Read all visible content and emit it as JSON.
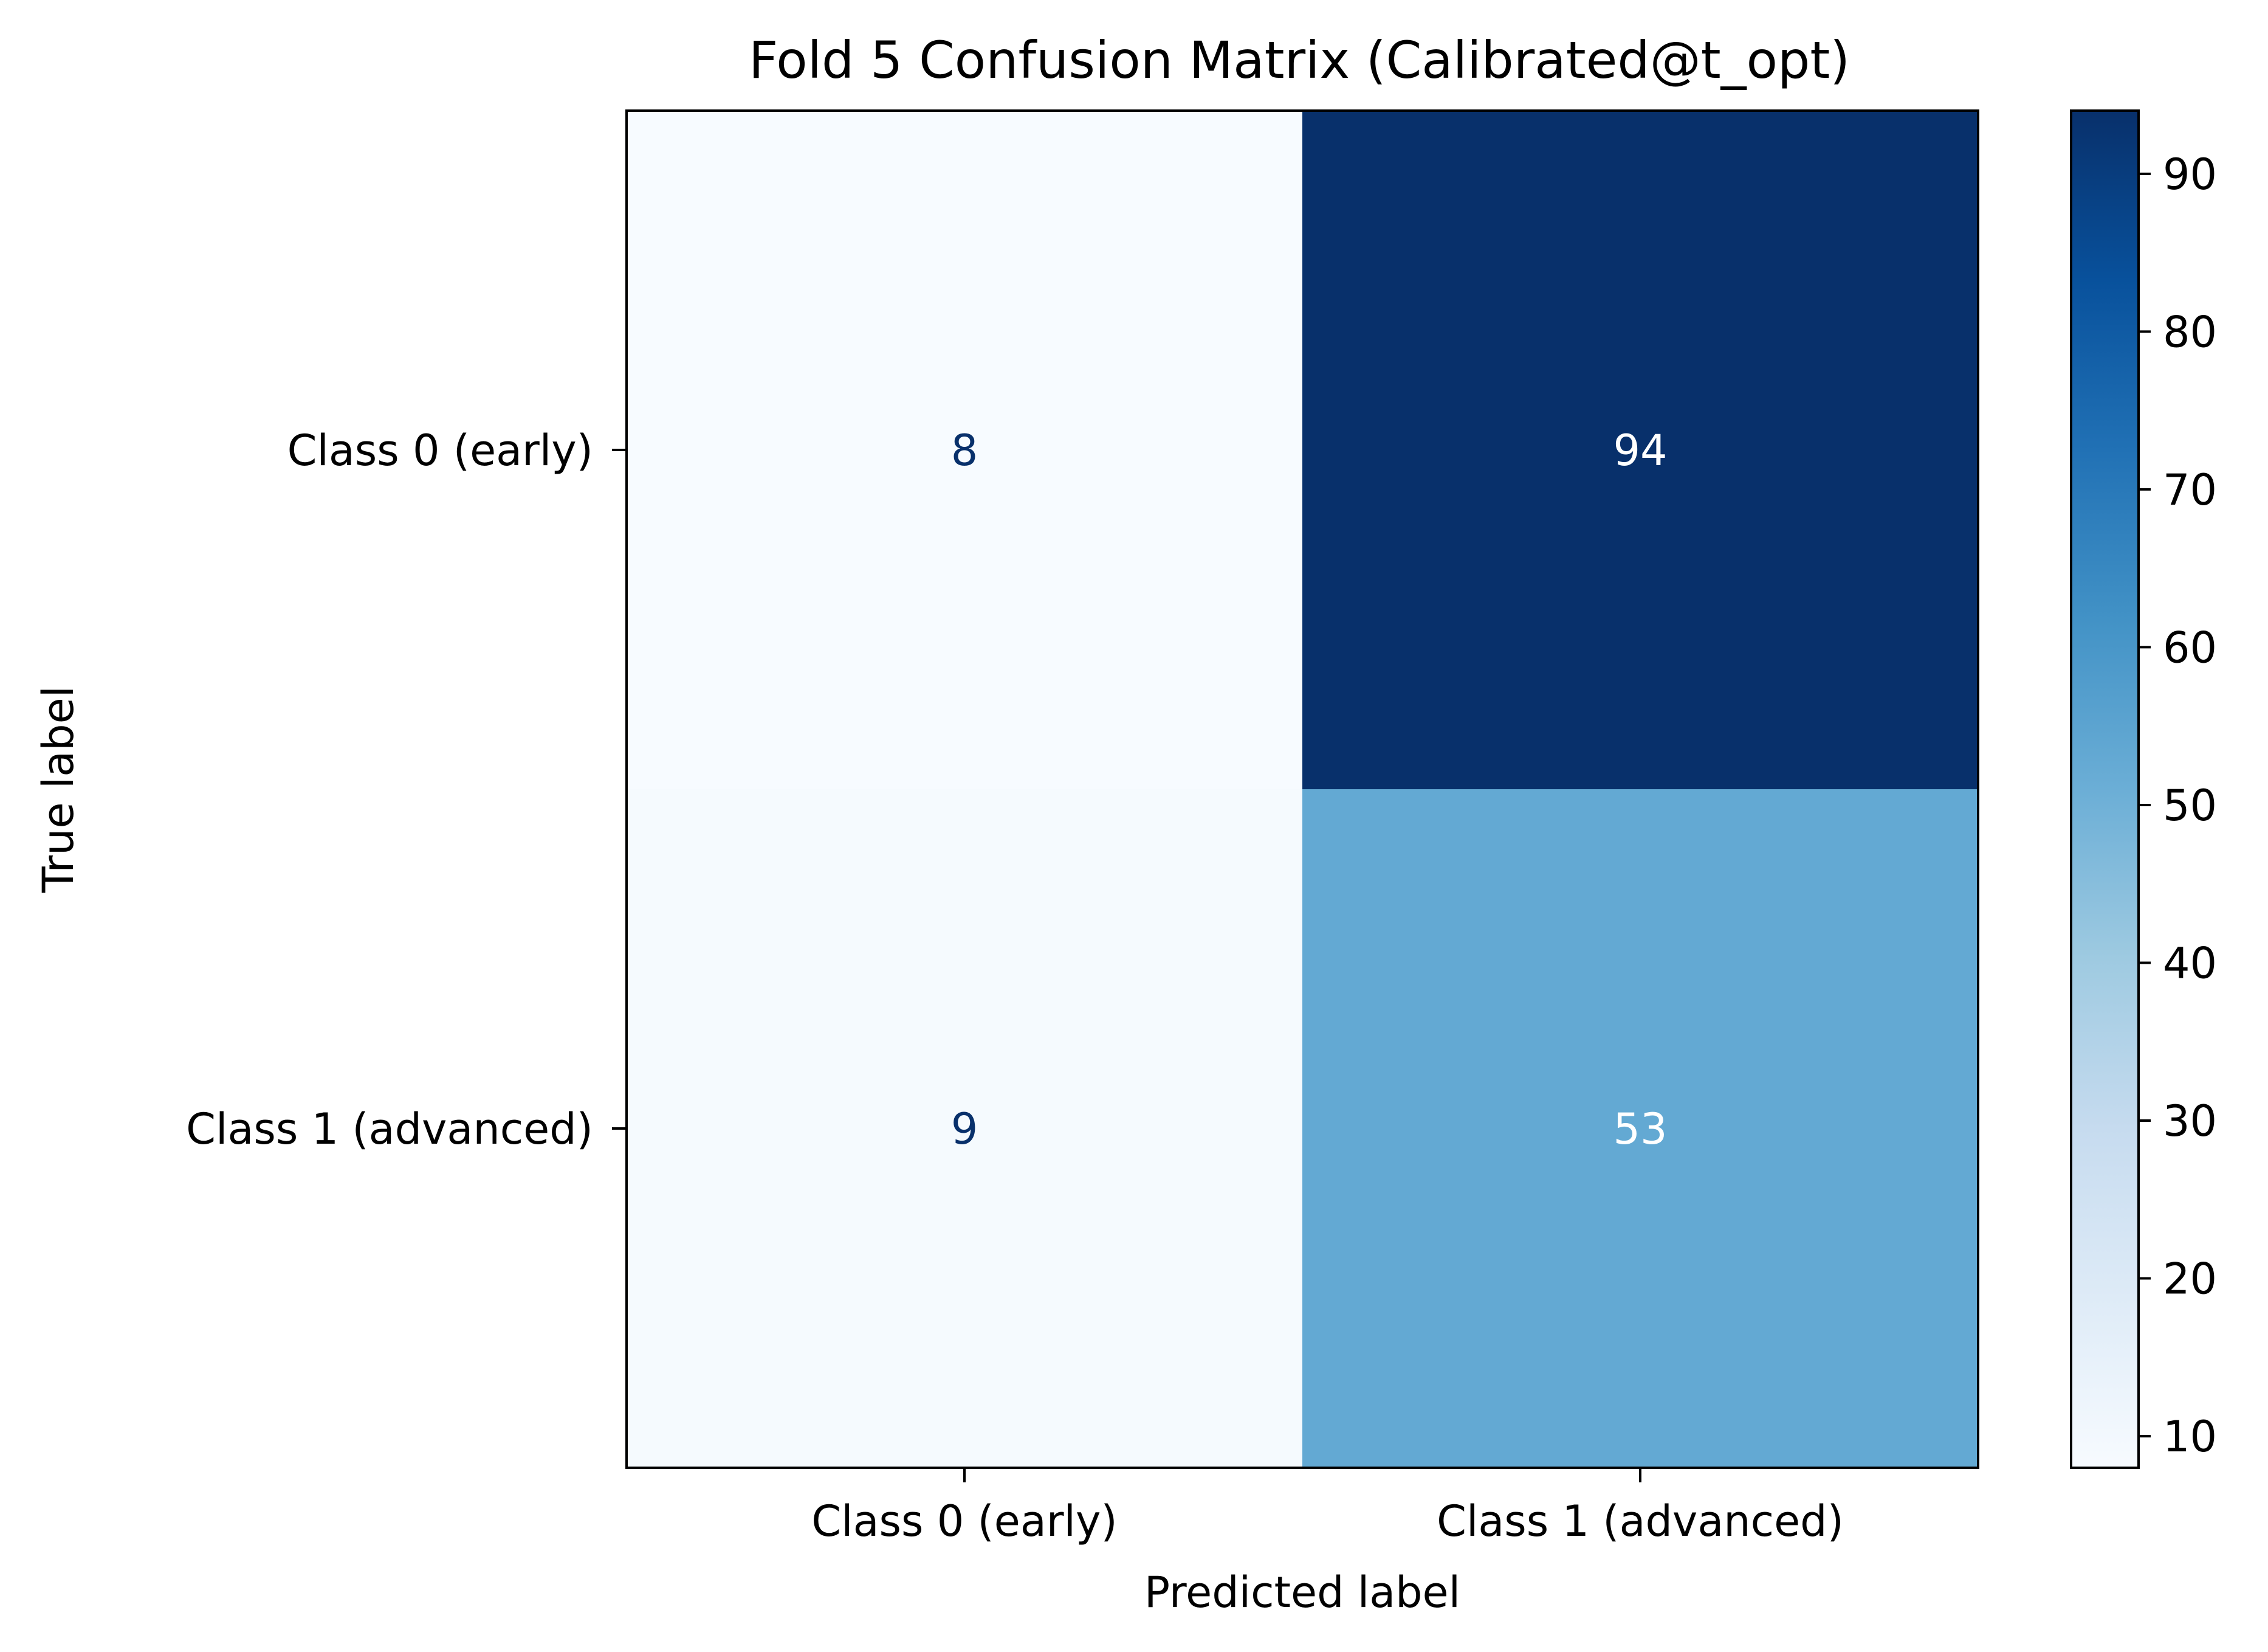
{
  "chart_data": {
    "type": "heatmap",
    "title": "Fold 5 Confusion Matrix (Calibrated@t_opt)",
    "xlabel": "Predicted label",
    "ylabel": "True label",
    "x_categories": [
      "Class 0 (early)",
      "Class 1 (advanced)"
    ],
    "y_categories": [
      "Class 0 (early)",
      "Class 1 (advanced)"
    ],
    "values": [
      [
        8,
        94
      ],
      [
        9,
        53
      ]
    ],
    "colormap": "Blues",
    "colorbar": {
      "range": [
        8,
        94
      ],
      "ticks": [
        10,
        20,
        30,
        40,
        50,
        60,
        70,
        80,
        90
      ],
      "tick_labels": [
        "10",
        "20",
        "30",
        "40",
        "50",
        "60",
        "70",
        "80",
        "90"
      ]
    },
    "grid": false,
    "legend": "none",
    "colors": {
      "blues_lightest": "#f7fbff",
      "blues_darkest": "#08306b",
      "text_on_light": "#08306b",
      "text_on_dark": "#ffffff",
      "axis": "#000000"
    }
  }
}
